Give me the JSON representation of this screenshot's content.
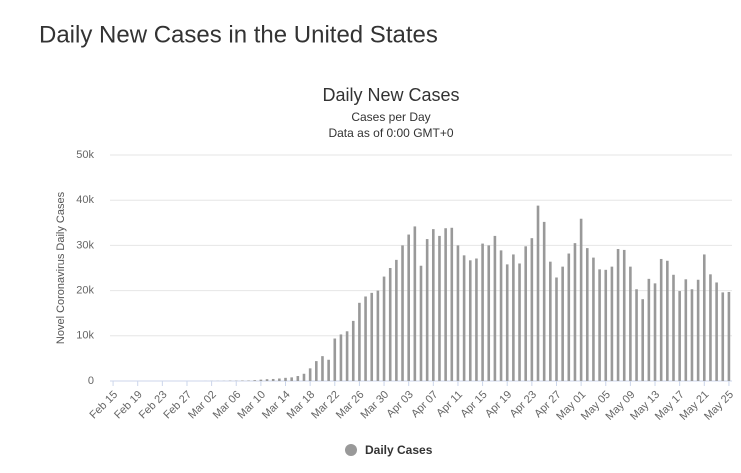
{
  "page_title": "Daily New Cases in the United States",
  "chart_data": {
    "type": "bar",
    "title": "Daily New Cases",
    "subtitle": [
      "Cases per Day",
      "Data as of 0:00 GMT+0"
    ],
    "y_label": "Novel Coronavirus Daily Cases",
    "categories": [
      "Feb 15",
      null,
      null,
      null,
      "Feb 19",
      null,
      null,
      null,
      "Feb 23",
      null,
      null,
      null,
      "Feb 27",
      null,
      null,
      null,
      "Mar 02",
      null,
      null,
      null,
      "Mar 06",
      null,
      null,
      null,
      "Mar 10",
      null,
      null,
      null,
      "Mar 14",
      null,
      null,
      null,
      "Mar 18",
      null,
      null,
      null,
      "Mar 22",
      null,
      null,
      null,
      "Mar 26",
      null,
      null,
      null,
      "Mar 30",
      null,
      null,
      null,
      "Apr 03",
      null,
      null,
      null,
      "Apr 07",
      null,
      null,
      null,
      "Apr 11",
      null,
      null,
      null,
      "Apr 15",
      null,
      null,
      null,
      "Apr 19",
      null,
      null,
      null,
      "Apr 23",
      null,
      null,
      null,
      "Apr 27",
      null,
      null,
      null,
      "May 01",
      null,
      null,
      null,
      "May 05",
      null,
      null,
      null,
      "May 09",
      null,
      null,
      null,
      "May 13",
      null,
      null,
      null,
      "May 17",
      null,
      null,
      null,
      "May 21",
      null,
      null,
      null,
      "May 25"
    ],
    "series": [
      {
        "name": "Daily Cases",
        "color": "#999999",
        "values": [
          0,
          0,
          0,
          0,
          0,
          0,
          0,
          0,
          0,
          0,
          0,
          0,
          0,
          0,
          0,
          8,
          20,
          25,
          30,
          70,
          60,
          100,
          100,
          180,
          300,
          400,
          450,
          550,
          700,
          800,
          1100,
          1600,
          2800,
          4400,
          5500,
          4700,
          9400,
          10300,
          11000,
          13300,
          17300,
          18700,
          19500,
          20000,
          23100,
          25000,
          26800,
          30000,
          32400,
          34200,
          25500,
          31400,
          33600,
          32100,
          33800,
          33900,
          30000,
          27800,
          26700,
          27100,
          30400,
          30000,
          32100,
          28900,
          25800,
          28000,
          26000,
          29800,
          31600,
          38800,
          35200,
          26400,
          22900,
          25300,
          28200,
          30500,
          35900,
          29400,
          27300,
          24700,
          24600,
          25300,
          29200,
          29000,
          25300,
          20300,
          18100,
          22600,
          21600,
          27000,
          26600,
          23500,
          19900,
          22500,
          20300,
          22400,
          28000,
          23600,
          21800,
          19600,
          19700
        ]
      }
    ],
    "ylim": [
      0,
      50000
    ],
    "yticks": [
      0,
      {
        "value": 10000,
        "label": "10k"
      },
      {
        "value": 20000,
        "label": "20k"
      },
      {
        "value": 30000,
        "label": "30k"
      },
      {
        "value": 40000,
        "label": "40k"
      },
      {
        "value": 50000,
        "label": "50k"
      }
    ],
    "grid": true,
    "legend": "bottom"
  }
}
